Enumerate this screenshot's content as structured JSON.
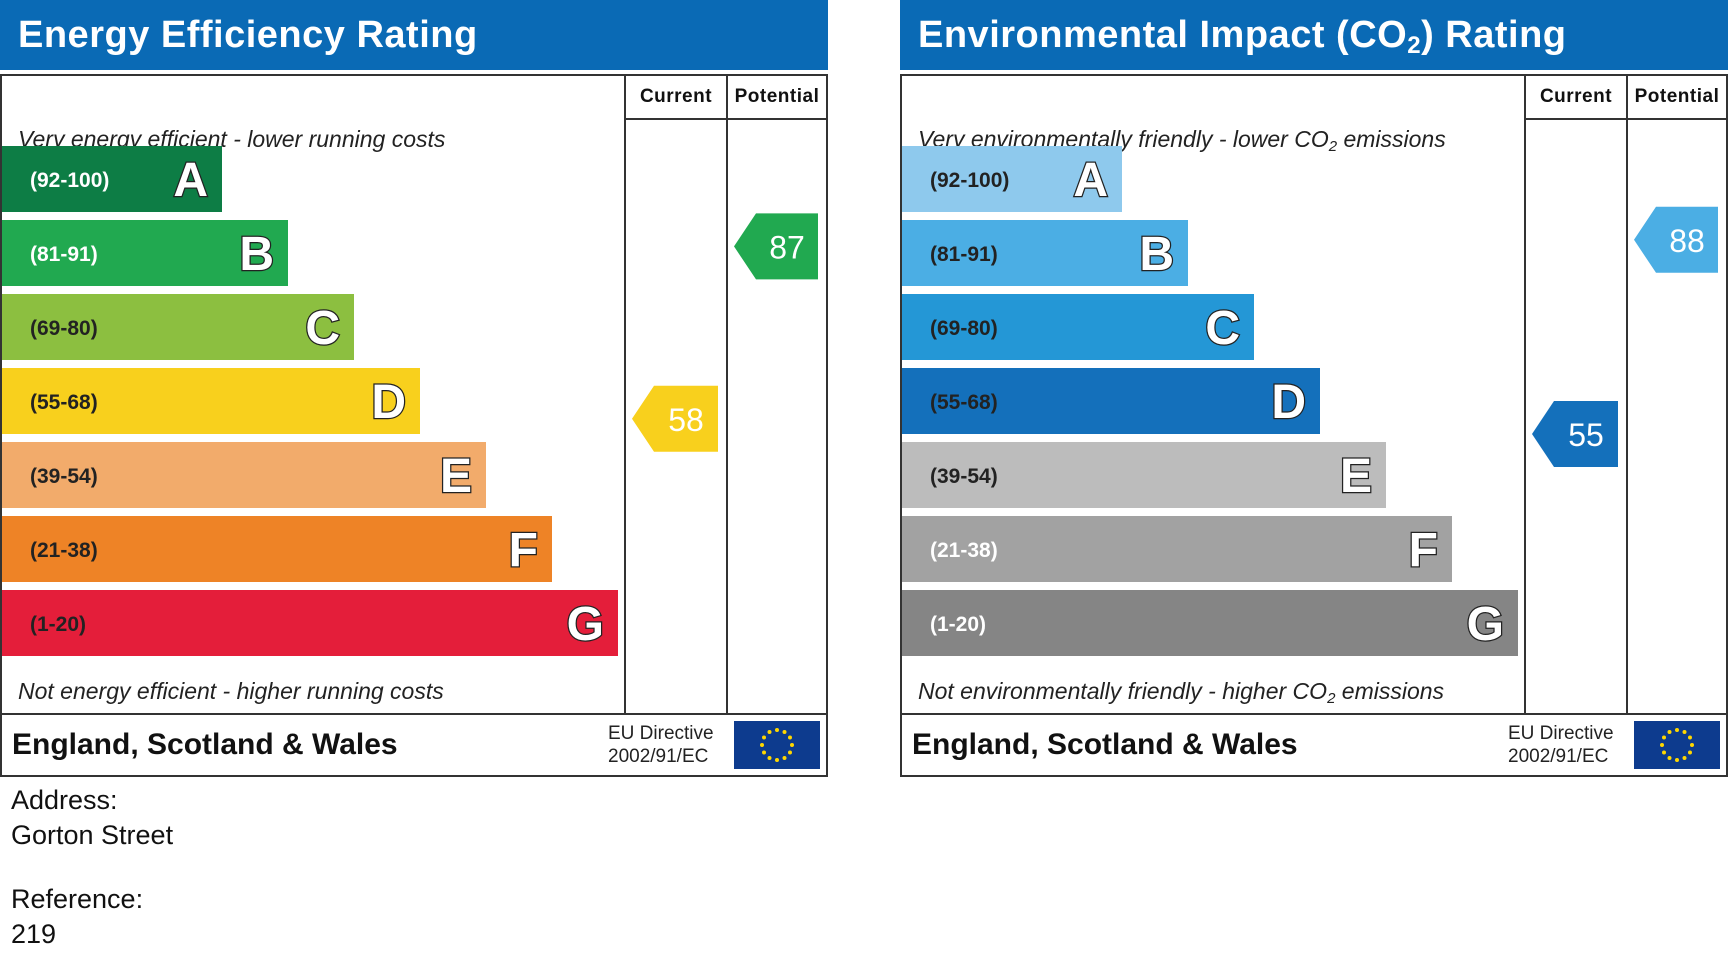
{
  "ee": {
    "title": "Energy Efficiency Rating",
    "col_current": "Current",
    "col_potential": "Potential",
    "note_top": "Very energy efficient - lower running costs",
    "note_bottom": "Not energy efficient - higher running costs",
    "footer": "England, Scotland & Wales",
    "directive_line1": "EU Directive",
    "directive_line2": "2002/91/EC"
  },
  "co2": {
    "title_prefix": "Environmental Impact (CO",
    "title_sub": "2",
    "title_suffix": ") Rating",
    "col_current": "Current",
    "col_potential": "Potential",
    "note_top_prefix": "Very environmentally friendly - lower CO",
    "note_top_sub": "2",
    "note_top_suffix": " emissions",
    "note_bottom_prefix": "Not environmentally friendly - higher CO",
    "note_bottom_sub": "2",
    "note_bottom_suffix": " emissions",
    "footer": "England, Scotland & Wales",
    "directive_line1": "EU Directive",
    "directive_line2": "2002/91/EC"
  },
  "info": {
    "address_label": "Address:",
    "address_value": "Gorton Street",
    "reference_label": "Reference:",
    "reference_value": "219"
  },
  "chart_data": [
    {
      "type": "bar",
      "title": "Energy Efficiency Rating",
      "categories": [
        "(92-100)",
        "(81-91)",
        "(69-80)",
        "(55-68)",
        "(39-54)",
        "(21-38)",
        "(1-20)"
      ],
      "band_letters": [
        "A",
        "B",
        "C",
        "D",
        "E",
        "F",
        "G"
      ],
      "band_lower_bounds": [
        92,
        81,
        69,
        55,
        39,
        21,
        1
      ],
      "band_colors": [
        "#0d7d45",
        "#21a950",
        "#8cbf40",
        "#f8d01d",
        "#f2ab6b",
        "#ee8326",
        "#e41e3a"
      ],
      "range_text_colors": [
        "#ffffff",
        "#ffffff",
        "#222222",
        "#222222",
        "#222222",
        "#222222",
        "#222222"
      ],
      "letter_fill": "#ffffff",
      "current": {
        "value": 58,
        "color": "#f8d01d",
        "text_color": "#ffffff"
      },
      "potential": {
        "value": 87,
        "color": "#21a950",
        "text_color": "#ffffff"
      }
    },
    {
      "type": "bar",
      "title": "Environmental Impact (CO2) Rating",
      "categories": [
        "(92-100)",
        "(81-91)",
        "(69-80)",
        "(55-68)",
        "(39-54)",
        "(21-38)",
        "(1-20)"
      ],
      "band_letters": [
        "A",
        "B",
        "C",
        "D",
        "E",
        "F",
        "G"
      ],
      "band_lower_bounds": [
        92,
        81,
        69,
        55,
        39,
        21,
        1
      ],
      "band_colors": [
        "#8ec9ed",
        "#4baee4",
        "#2497d6",
        "#1470bb",
        "#bcbcbc",
        "#a2a2a2",
        "#858585"
      ],
      "range_text_colors": [
        "#222222",
        "#222222",
        "#222222",
        "#222222",
        "#222222",
        "#ffffff",
        "#ffffff"
      ],
      "letter_fill": "#ffffff",
      "current": {
        "value": 55,
        "color": "#1470bb",
        "text_color": "#ffffff"
      },
      "potential": {
        "value": 88,
        "color": "#4baee4",
        "text_color": "#ffffff"
      }
    }
  ]
}
